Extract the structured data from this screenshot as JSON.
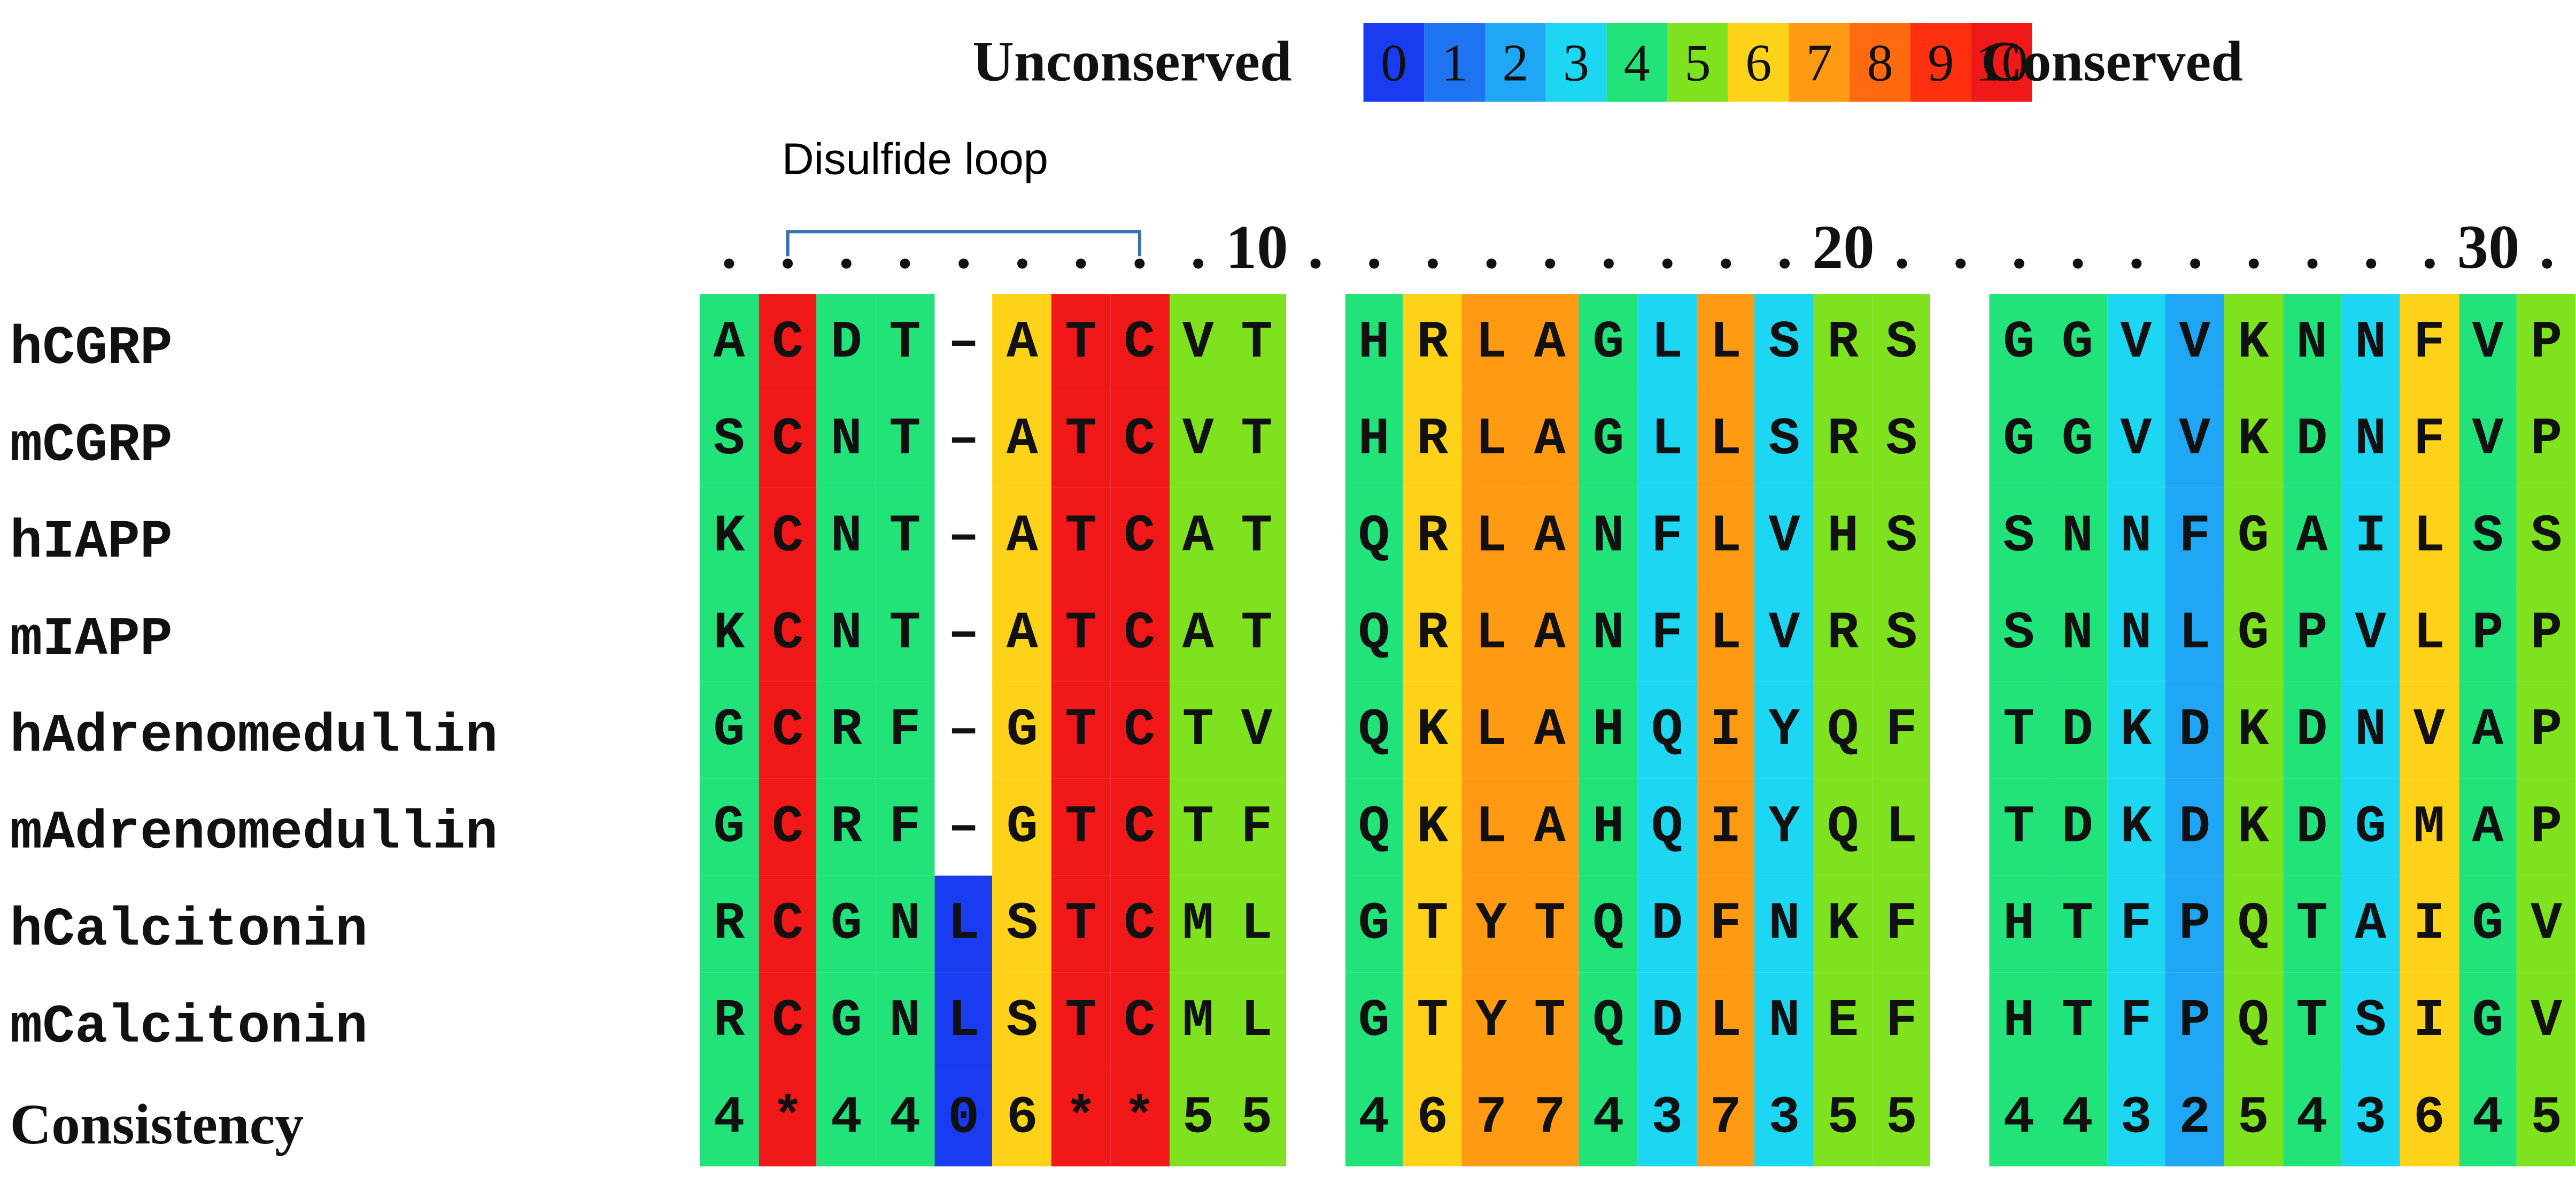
{
  "legend": {
    "left_label": "Unconserved",
    "right_label": "Conserved",
    "levels": [
      {
        "label": "0",
        "color": "#1a3cf0"
      },
      {
        "label": "1",
        "color": "#1f74f2"
      },
      {
        "label": "2",
        "color": "#1fa7f5"
      },
      {
        "label": "3",
        "color": "#1cd6f2"
      },
      {
        "label": "4",
        "color": "#22e27a"
      },
      {
        "label": "5",
        "color": "#7fe21e"
      },
      {
        "label": "6",
        "color": "#ffd21a"
      },
      {
        "label": "7",
        "color": "#ff9a12"
      },
      {
        "label": "8",
        "color": "#ff6a10"
      },
      {
        "label": "9",
        "color": "#ff3010"
      },
      {
        "label": "10",
        "color": "#f01818"
      }
    ]
  },
  "annotation": {
    "label": "Disulfide loop",
    "span": [
      1,
      7
    ]
  },
  "ruler": {
    "marks": [
      {
        "col": 9,
        "text": "10"
      },
      {
        "col": 19,
        "text": "20"
      },
      {
        "col": 30,
        "text": "30"
      }
    ]
  },
  "column_scores": [
    4,
    10,
    4,
    4,
    0,
    6,
    10,
    10,
    5,
    5,
    null,
    4,
    6,
    7,
    7,
    4,
    3,
    7,
    3,
    5,
    5,
    null,
    4,
    4,
    3,
    2,
    5,
    4,
    3,
    6,
    4,
    5
  ],
  "sequences": [
    {
      "name": "hCGRP",
      "residues": "ACDT-ATCVT HRLAGLLSRS GGVVKNNFVP"
    },
    {
      "name": "mCGRP",
      "residues": "SCNT-ATCVT HRLAGLLSRS GGVVKDNFVP"
    },
    {
      "name": "hIAPP",
      "residues": "KCNT-ATCAT QRLANFLVHS SNNFGAILSS"
    },
    {
      "name": "mIAPP",
      "residues": "KCNT-ATCAT QRLANFLVRS SNNLGPVLPP"
    },
    {
      "name": "hAdrenomedullin",
      "residues": "GCRF-GTCTV QKLAHQIYQF TDKDKDNVAP"
    },
    {
      "name": "mAdrenomedullin",
      "residues": "GCRF-GTCTF QKLAHQIYQL TDKDKDGMAP"
    },
    {
      "name": "hCalcitonin",
      "residues": "RCGNLSTCML GTYTQDFNKF HTFPQTAIGV"
    },
    {
      "name": "mCalcitonin",
      "residues": "RCGNLSTCML GTYTQDLNEF HTFPQTSIGV"
    }
  ],
  "consistency": {
    "name": "Consistency",
    "residues": "4*4406**55 4677437355 4432543645"
  }
}
